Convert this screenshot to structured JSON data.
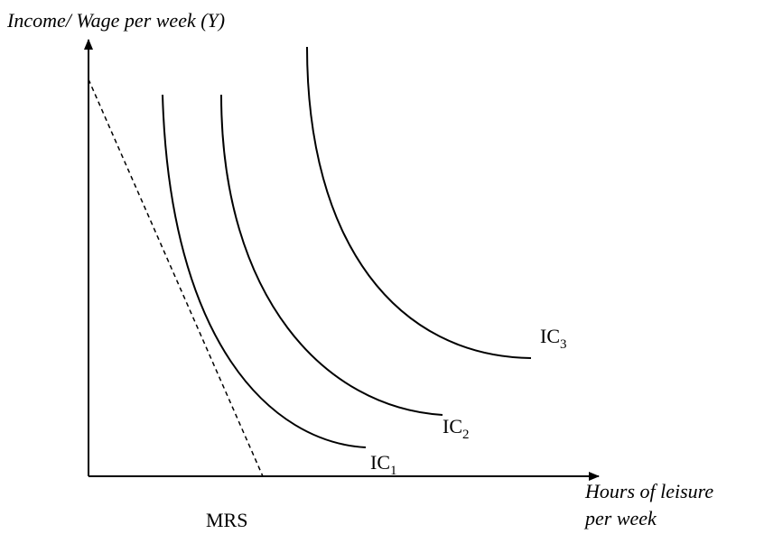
{
  "y_axis_label": "Income/ Wage per week (Y)",
  "x_axis_label": [
    "Hours of leisure",
    "per week"
  ],
  "curves": [
    {
      "label": "IC",
      "subscript": "1"
    },
    {
      "label": "IC",
      "subscript": "2"
    },
    {
      "label": "IC",
      "subscript": "3"
    }
  ],
  "tangent_label": "MRS"
}
